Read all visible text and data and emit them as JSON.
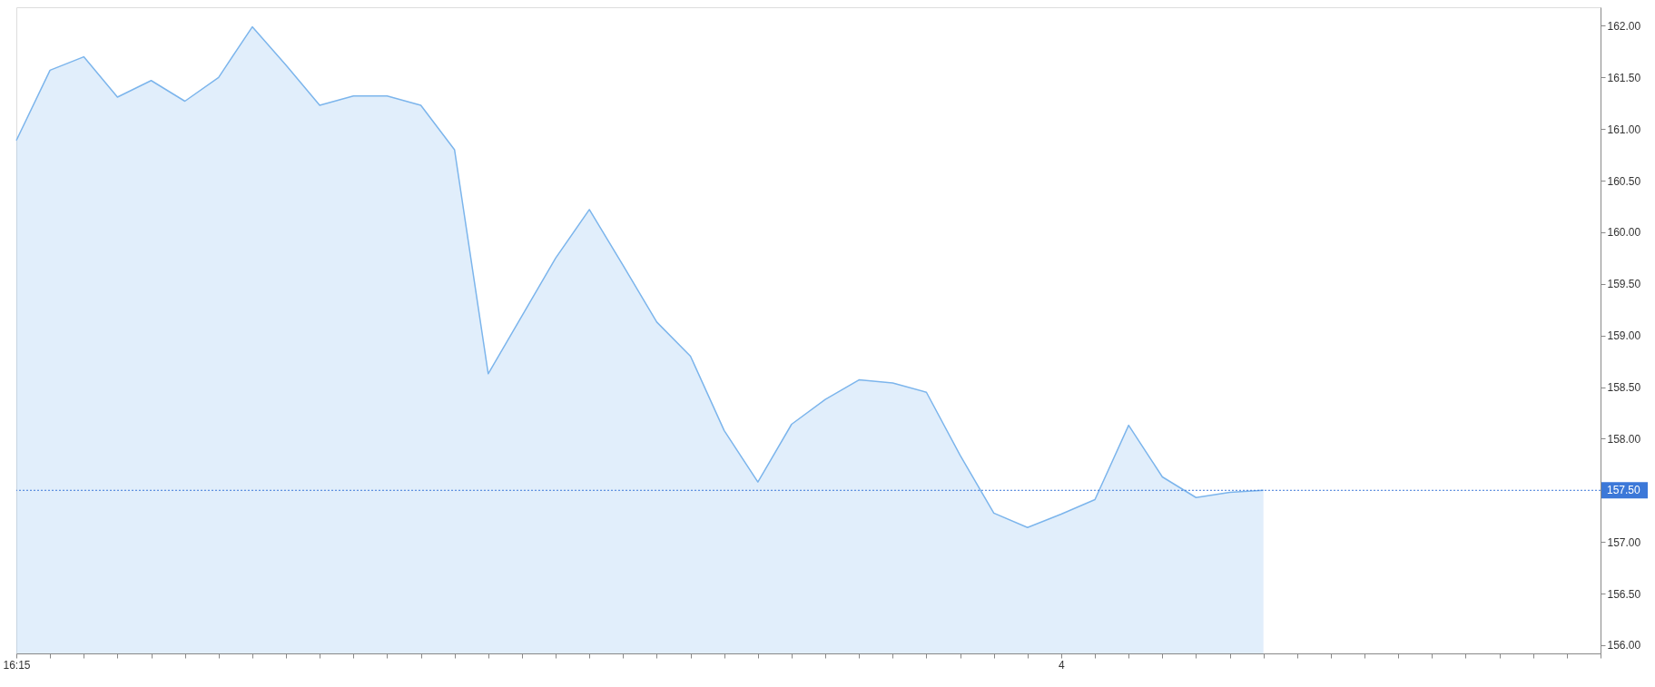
{
  "chart_data": {
    "type": "area",
    "categories": [
      "16:15",
      null,
      null,
      null,
      null,
      null,
      null,
      null,
      null,
      null,
      null,
      null,
      null,
      null,
      null,
      null,
      null,
      null,
      null,
      null,
      null,
      null,
      null,
      null,
      null,
      null,
      null,
      null,
      null,
      null,
      null,
      "4",
      null,
      null,
      null,
      null,
      null,
      null,
      null,
      null,
      null,
      null,
      null,
      null,
      null,
      null,
      null,
      null
    ],
    "series": [
      {
        "color": "#7cb5ec",
        "values": [
          160.89,
          161.57,
          161.7,
          161.31,
          161.47,
          161.27,
          161.5,
          161.99,
          161.62,
          161.23,
          161.32,
          161.32,
          161.23,
          160.8,
          158.63,
          159.19,
          159.75,
          160.22,
          159.68,
          159.13,
          158.8,
          158.08,
          157.58,
          158.14,
          158.38,
          158.57,
          158.54,
          158.45,
          157.84,
          157.28,
          157.14,
          157.27,
          157.41,
          158.13,
          157.63,
          157.43,
          157.48,
          157.5,
          null,
          null,
          null,
          null,
          null,
          null,
          null,
          null,
          null,
          null
        ]
      }
    ],
    "ylim": [
      155.92,
      162.18
    ],
    "yticks": [
      {
        "value": 156,
        "label": "156.00"
      },
      {
        "value": 156.5,
        "label": "156.50"
      },
      {
        "value": 157,
        "label": "157.00"
      },
      {
        "value": 158,
        "label": "158.00"
      },
      {
        "value": 158.5,
        "label": "158.50"
      },
      {
        "value": 159,
        "label": "159.00"
      },
      {
        "value": 159.5,
        "label": "159.50"
      },
      {
        "value": 160,
        "label": "160.00"
      },
      {
        "value": 160.5,
        "label": "160.50"
      },
      {
        "value": 161,
        "label": "161.00"
      },
      {
        "value": 161.5,
        "label": "161.50"
      },
      {
        "value": 162,
        "label": "162.00"
      }
    ],
    "ref_lines": [
      {
        "axis": "y",
        "value": 157.5,
        "label": "157.50",
        "color": "#3c78d8",
        "line_style": "dotted"
      }
    ],
    "grid": false
  }
}
